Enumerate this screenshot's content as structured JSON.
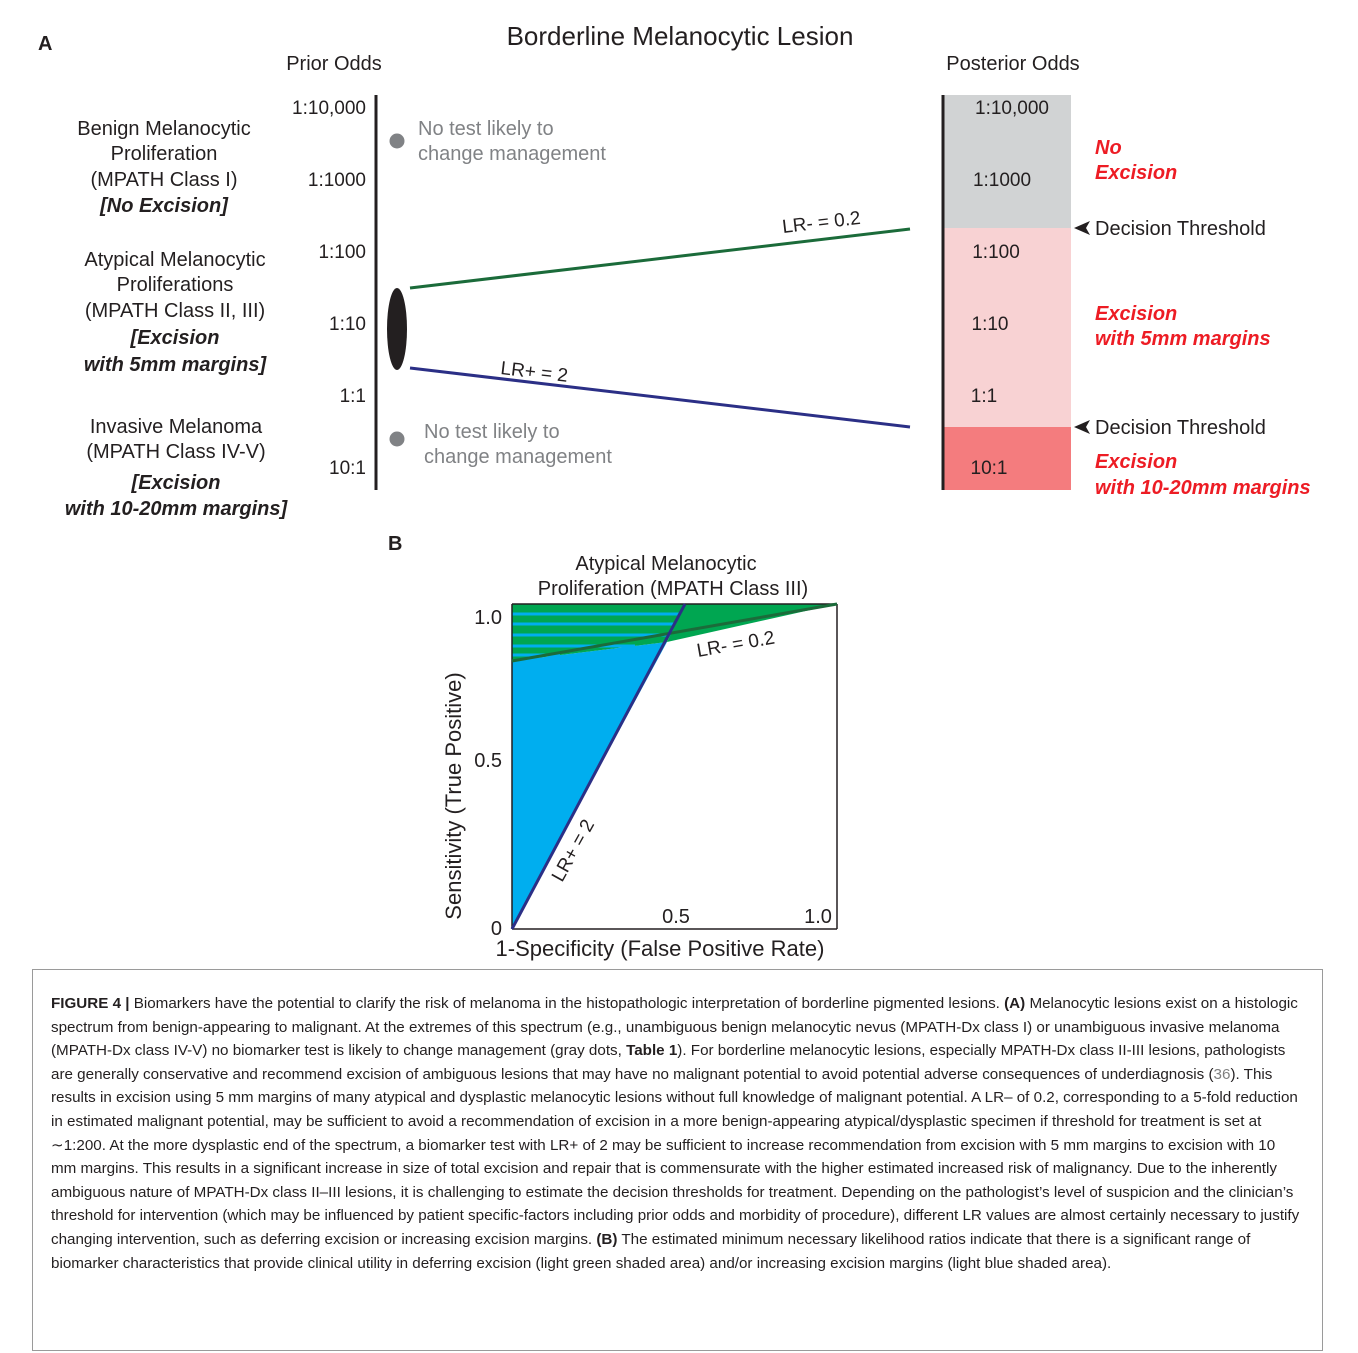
{
  "panel_a": {
    "label": "A",
    "title": "Borderline Melanocytic Lesion",
    "prior_odds_header": "Prior Odds",
    "posterior_odds_header": "Posterior Odds",
    "categories": [
      {
        "lines": [
          "Benign Melanocytic",
          "Proliferation",
          "(MPATH Class I)"
        ],
        "action": [
          "[No Excision]"
        ]
      },
      {
        "lines": [
          "Atypical Melanocytic",
          "Proliferations",
          "(MPATH Class II, III)"
        ],
        "action": [
          "[Excision",
          "with 5mm margins]"
        ]
      },
      {
        "lines": [
          "Invasive Melanoma",
          "(MPATH Class IV-V)"
        ],
        "action": [
          "[Excision",
          "with 10-20mm margins]"
        ]
      }
    ],
    "prior_ticks": [
      "1:10,000",
      "1:1000",
      "1:100",
      "1:10",
      "1:1",
      "10:1"
    ],
    "posterior_ticks": [
      "1:10,000",
      "1:1000",
      "1:100",
      "1:10",
      "1:1",
      "10:1"
    ],
    "no_test_top": [
      "No test likely to",
      "change management"
    ],
    "no_test_bottom": [
      "No test likely to",
      "change management"
    ],
    "lr_minus_label": "LR- = 0.2",
    "lr_plus_label": "LR+ = 2",
    "decision_threshold_top": "Decision Threshold",
    "decision_threshold_bottom": "Decision Threshold",
    "zone_no_excision": [
      "No",
      "Excision"
    ],
    "zone_5mm": [
      "Excision",
      "with 5mm margins"
    ],
    "zone_10mm": [
      "Excision",
      "with 10-20mm margins"
    ],
    "colors": {
      "zone_gray": "#d1d3d4",
      "zone_light_red": "#f8d2d3",
      "zone_red": "#f47c7e",
      "red_text": "#ed1c24",
      "green_line": "#1b6b3a",
      "blue_line": "#2b2f86",
      "gray_dot": "#808285"
    }
  },
  "panel_b": {
    "label": "B",
    "title_lines": [
      "Atypical Melanocytic",
      "Proliferation (MPATH Class III)"
    ],
    "xlabel": "1-Specificity (False Positive Rate)",
    "ylabel": "Sensitivity (True Positive)",
    "x_ticks": [
      "0.5",
      "1.0"
    ],
    "y_ticks": [
      "1.0",
      "0.5",
      "0"
    ],
    "lr_minus_label": "LR- = 0.2",
    "lr_plus_label": "LR+ = 2",
    "colors": {
      "blue_fill": "#00aeef",
      "green_fill": "#00a651",
      "line_green": "#1b6b3a",
      "line_blue": "#2b2f86"
    }
  },
  "caption": {
    "label": "FIGURE 4 |",
    "segments": [
      {
        "t": " Biomarkers have the potential to clarify the risk of melanoma in the histopathologic interpretation of borderline pigmented lesions. "
      },
      {
        "t": "(A)",
        "b": true
      },
      {
        "t": " Melanocytic lesions exist on a histologic spectrum from benign-appearing to malignant. At the extremes of this spectrum (e.g., unambiguous benign melanocytic nevus (MPATH-Dx class I) or unambiguous invasive melanoma (MPATH-Dx class IV-V) no biomarker test is likely to change management (gray dots, "
      },
      {
        "t": "Table 1",
        "b": true
      },
      {
        "t": "). For borderline melanocytic lesions, especially MPATH-Dx class II-III lesions, pathologists are generally conservative and recommend excision of ambiguous lesions that may have no malignant potential to avoid potential adverse consequences of underdiagnosis ("
      },
      {
        "t": "36",
        "ref": true
      },
      {
        "t": "). This results in excision using 5 mm margins of many atypical and dysplastic melanocytic lesions without full knowledge of malignant potential. A LR– of 0.2, corresponding to a 5-fold reduction in estimated malignant potential, may be sufficient to avoid a recommendation of excision in a more benign-appearing atypical/dysplastic specimen if threshold for treatment is set at ∼1:200. At the more dysplastic end of the spectrum, a biomarker test with LR+ of 2 may be sufficient to increase recommendation from excision with 5 mm margins to excision with 10 mm margins. This results in a significant increase in size of total excision and repair that is commensurate with the higher estimated increased risk of malignancy. Due to the inherently ambiguous nature of MPATH-Dx class II–III lesions, it is challenging to estimate the decision thresholds for treatment. Depending on the pathologist’s level of suspicion and the clinician’s threshold for intervention (which may be influenced by patient specific-factors including prior odds and morbidity of procedure), different LR values are almost certainly necessary to justify changing intervention, such as deferring excision or increasing excision margins. "
      },
      {
        "t": "(B)",
        "b": true
      },
      {
        "t": " The estimated minimum necessary likelihood ratios indicate that there is a significant range of biomarker characteristics that provide clinical utility in deferring excision (light green shaded area) and/or increasing excision margins (light blue shaded area)."
      }
    ]
  }
}
